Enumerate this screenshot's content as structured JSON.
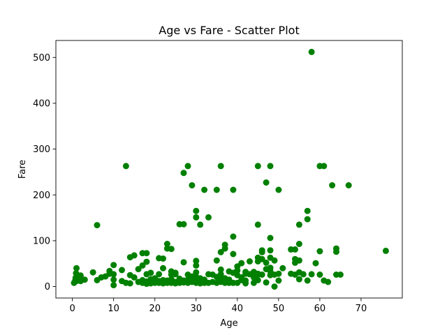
{
  "chart_data": {
    "type": "scatter",
    "title": "Age vs Fare - Scatter Plot",
    "xlabel": "Age",
    "ylabel": "Fare",
    "xlim": [
      -4,
      80
    ],
    "ylim": [
      -25,
      537
    ],
    "xticks": [
      0,
      10,
      20,
      30,
      40,
      50,
      60,
      70
    ],
    "yticks": [
      0,
      100,
      200,
      300,
      400,
      500
    ],
    "grid": false,
    "legend": "none",
    "marker_color": "#008000",
    "series": [
      {
        "points": [
          [
            0.4,
            8
          ],
          [
            0.7,
            14
          ],
          [
            0.8,
            19
          ],
          [
            0.9,
            29
          ],
          [
            1,
            12
          ],
          [
            1,
            21
          ],
          [
            1,
            40
          ],
          [
            2,
            12
          ],
          [
            2,
            24
          ],
          [
            3,
            15
          ],
          [
            5,
            31
          ],
          [
            6,
            14
          ],
          [
            6,
            134
          ],
          [
            7,
            20
          ],
          [
            8,
            22
          ],
          [
            9,
            28
          ],
          [
            9,
            34
          ],
          [
            10,
            3
          ],
          [
            10,
            15
          ],
          [
            10,
            27
          ],
          [
            10,
            47
          ],
          [
            12,
            12
          ],
          [
            12,
            36
          ],
          [
            13,
            8
          ],
          [
            13,
            263
          ],
          [
            14,
            7
          ],
          [
            14,
            25
          ],
          [
            14,
            64
          ],
          [
            15,
            20
          ],
          [
            15,
            68
          ],
          [
            16,
            10
          ],
          [
            16,
            38
          ],
          [
            17,
            8
          ],
          [
            17,
            14
          ],
          [
            17,
            46
          ],
          [
            17,
            73
          ],
          [
            18,
            6
          ],
          [
            18,
            11
          ],
          [
            18,
            27
          ],
          [
            18,
            54
          ],
          [
            18,
            73
          ],
          [
            19,
            7
          ],
          [
            19,
            10
          ],
          [
            19,
            16
          ],
          [
            19,
            30
          ],
          [
            20,
            8
          ],
          [
            20,
            10
          ],
          [
            20,
            18
          ],
          [
            21,
            8
          ],
          [
            21,
            12
          ],
          [
            21,
            27
          ],
          [
            21,
            62
          ],
          [
            22,
            7
          ],
          [
            22,
            10
          ],
          [
            22,
            14
          ],
          [
            22,
            40
          ],
          [
            22,
            61
          ],
          [
            23,
            8
          ],
          [
            23,
            13
          ],
          [
            23,
            83
          ],
          [
            23,
            93
          ],
          [
            24,
            8
          ],
          [
            24,
            16
          ],
          [
            24,
            26
          ],
          [
            24,
            33
          ],
          [
            24,
            82
          ],
          [
            25,
            7
          ],
          [
            25,
            10
          ],
          [
            25,
            27
          ],
          [
            25,
            30
          ],
          [
            26,
            8
          ],
          [
            26,
            17
          ],
          [
            26,
            136
          ],
          [
            27,
            9
          ],
          [
            27,
            13
          ],
          [
            27,
            53
          ],
          [
            27,
            136
          ],
          [
            27,
            248
          ],
          [
            28,
            8
          ],
          [
            28,
            15
          ],
          [
            28,
            26
          ],
          [
            28,
            263
          ],
          [
            29,
            10
          ],
          [
            29,
            22
          ],
          [
            29,
            221
          ],
          [
            30,
            8
          ],
          [
            30,
            13
          ],
          [
            30,
            21
          ],
          [
            30,
            31
          ],
          [
            30,
            46
          ],
          [
            30,
            56
          ],
          [
            30,
            151
          ],
          [
            30,
            165
          ],
          [
            31,
            7
          ],
          [
            31,
            18
          ],
          [
            31,
            135
          ],
          [
            32,
            8
          ],
          [
            32,
            15
          ],
          [
            32,
            211
          ],
          [
            33,
            8
          ],
          [
            33,
            27
          ],
          [
            33,
            151
          ],
          [
            34,
            10
          ],
          [
            34,
            26
          ],
          [
            35,
            8
          ],
          [
            35,
            21
          ],
          [
            35,
            57
          ],
          [
            35,
            211
          ],
          [
            36,
            10
          ],
          [
            36,
            15
          ],
          [
            36,
            27
          ],
          [
            36,
            37
          ],
          [
            36,
            75
          ],
          [
            36,
            263
          ],
          [
            37,
            8
          ],
          [
            37,
            18
          ],
          [
            37,
            83
          ],
          [
            37,
            91
          ],
          [
            38,
            8
          ],
          [
            38,
            15
          ],
          [
            38,
            33
          ],
          [
            39,
            8
          ],
          [
            39,
            30
          ],
          [
            39,
            71
          ],
          [
            39,
            109
          ],
          [
            39,
            211
          ],
          [
            40,
            8
          ],
          [
            40,
            25
          ],
          [
            40,
            35
          ],
          [
            40,
            44
          ],
          [
            41,
            14
          ],
          [
            41,
            20
          ],
          [
            41,
            51
          ],
          [
            42,
            7
          ],
          [
            42,
            13
          ],
          [
            42,
            32
          ],
          [
            42,
            28
          ],
          [
            43,
            27
          ],
          [
            43,
            55
          ],
          [
            44,
            8
          ],
          [
            44,
            20
          ],
          [
            44,
            32
          ],
          [
            45,
            14
          ],
          [
            45,
            26
          ],
          [
            45,
            28
          ],
          [
            45,
            55
          ],
          [
            45,
            63
          ],
          [
            45,
            135
          ],
          [
            45,
            263
          ],
          [
            46,
            26
          ],
          [
            46,
            60
          ],
          [
            46,
            75
          ],
          [
            46,
            79
          ],
          [
            47,
            9
          ],
          [
            47,
            38
          ],
          [
            47,
            52
          ],
          [
            47,
            227
          ],
          [
            48,
            25
          ],
          [
            48,
            34
          ],
          [
            48,
            41
          ],
          [
            48,
            63
          ],
          [
            48,
            79
          ],
          [
            48,
            106
          ],
          [
            48,
            263
          ],
          [
            49,
            0
          ],
          [
            49,
            26
          ],
          [
            49,
            57
          ],
          [
            50,
            13
          ],
          [
            50,
            28
          ],
          [
            50,
            211
          ],
          [
            51,
            40
          ],
          [
            53,
            28
          ],
          [
            53,
            81
          ],
          [
            54,
            26
          ],
          [
            54,
            52
          ],
          [
            54,
            60
          ],
          [
            54,
            81
          ],
          [
            55,
            16
          ],
          [
            55,
            31
          ],
          [
            55,
            57
          ],
          [
            55,
            93
          ],
          [
            55,
            135
          ],
          [
            56,
            27
          ],
          [
            57,
            13
          ],
          [
            57,
            147
          ],
          [
            57,
            165
          ],
          [
            58,
            27
          ],
          [
            58,
            512
          ],
          [
            59,
            51
          ],
          [
            60,
            26
          ],
          [
            60,
            77
          ],
          [
            60,
            263
          ],
          [
            61,
            13
          ],
          [
            61,
            263
          ],
          [
            62,
            10
          ],
          [
            63,
            221
          ],
          [
            64,
            26
          ],
          [
            64,
            76
          ],
          [
            64,
            83
          ],
          [
            65,
            26
          ],
          [
            67,
            221
          ],
          [
            76,
            78
          ]
        ]
      }
    ]
  }
}
